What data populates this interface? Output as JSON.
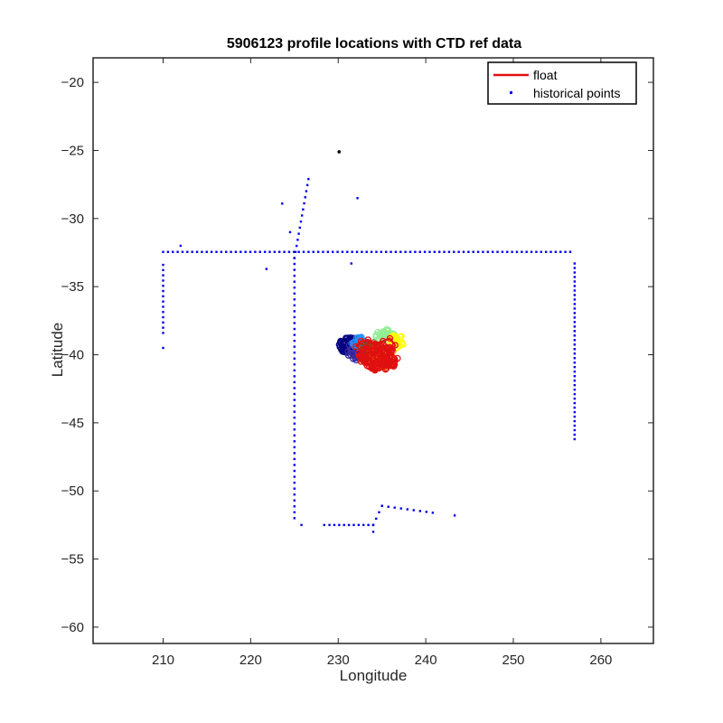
{
  "chart_data": {
    "type": "scatter",
    "title": "5906123 profile locations with CTD ref data",
    "xlabel": "Longitude",
    "ylabel": "Latitude",
    "xlim": [
      202,
      266
    ],
    "ylim": [
      -61.2,
      -18.2
    ],
    "xticks": [
      210,
      220,
      230,
      240,
      250,
      260
    ],
    "yticks": [
      -20,
      -25,
      -30,
      -35,
      -40,
      -45,
      -50,
      -55,
      -60
    ],
    "grid": false,
    "legend_position": "top-right",
    "colors": {
      "float": "#e01010",
      "historical": "#0000ee",
      "axis": "#262626"
    },
    "series": [
      {
        "name": "float",
        "marker": "line",
        "color": "#e01010",
        "x": [
          232.0,
          232.6,
          233.4,
          234.2,
          235.1,
          235.9,
          236.5,
          236.0,
          235.2,
          234.4,
          233.6,
          232.9,
          232.3,
          232.6,
          233.3,
          234.1,
          234.9,
          235.6,
          236.2,
          235.7,
          234.9,
          234.0,
          233.2,
          232.7,
          233.1,
          233.9,
          234.7,
          235.5,
          236.1,
          235.4,
          234.6,
          233.8,
          233.0,
          232.4,
          232.8,
          233.6
        ],
        "y": [
          -39.4,
          -39.0,
          -38.9,
          -39.2,
          -39.0,
          -38.8,
          -39.3,
          -39.8,
          -40.1,
          -39.7,
          -40.0,
          -40.3,
          -39.9,
          -40.5,
          -40.8,
          -40.4,
          -40.9,
          -40.6,
          -40.2,
          -39.6,
          -39.4,
          -39.8,
          -39.5,
          -40.0,
          -40.6,
          -41.0,
          -40.7,
          -41.0,
          -40.5,
          -40.2,
          -40.6,
          -40.9,
          -40.5,
          -40.1,
          -39.6,
          -39.3
        ]
      },
      {
        "name": "historical points",
        "marker": "dot",
        "color": "#0000ee",
        "segments": [
          {
            "x0": 210.0,
            "y0": -32.45,
            "x1": 256.5,
            "y1": -32.45,
            "n": 85
          },
          {
            "x0": 210.0,
            "y0": -33.4,
            "x1": 210.0,
            "y1": -38.4,
            "n": 14
          },
          {
            "x0": 257.0,
            "y0": -33.3,
            "x1": 257.0,
            "y1": -46.2,
            "n": 40
          },
          {
            "x0": 225.0,
            "y0": -32.9,
            "x1": 225.0,
            "y1": -52.0,
            "n": 45
          },
          {
            "x0": 225.0,
            "y0": -32.9,
            "x1": 226.6,
            "y1": -27.1,
            "n": 14
          },
          {
            "x0": 229.0,
            "y0": -52.5,
            "x1": 234.0,
            "y1": -52.5,
            "n": 10
          },
          {
            "x0": 234.0,
            "y0": -52.5,
            "x1": 235.0,
            "y1": -51.1,
            "n": 4
          },
          {
            "x0": 235.0,
            "y0": -51.1,
            "x1": 240.8,
            "y1": -51.6,
            "n": 9
          }
        ],
        "points": [
          {
            "x": 212.0,
            "y": -32.0
          },
          {
            "x": 210.0,
            "y": -39.5
          },
          {
            "x": 223.6,
            "y": -28.9
          },
          {
            "x": 224.5,
            "y": -31.0
          },
          {
            "x": 221.8,
            "y": -33.7
          },
          {
            "x": 232.2,
            "y": -28.5
          },
          {
            "x": 231.5,
            "y": -33.3
          },
          {
            "x": 225.8,
            "y": -52.5
          },
          {
            "x": 228.4,
            "y": -52.5
          },
          {
            "x": 234.0,
            "y": -53.0
          },
          {
            "x": 243.3,
            "y": -51.8
          }
        ]
      }
    ],
    "unlabeled_points": [
      {
        "x": 230.1,
        "y": -25.1,
        "color": "#000000"
      }
    ],
    "colored_clusters": [
      {
        "color": "#000080",
        "cx": 231.3,
        "cy": -39.3,
        "rx": 1.2,
        "ry": 0.6,
        "n": 70
      },
      {
        "color": "#3a2aa0",
        "cx": 232.3,
        "cy": -39.7,
        "rx": 1.3,
        "ry": 0.7,
        "n": 50
      },
      {
        "color": "#1e90ff",
        "cx": 232.5,
        "cy": -39.1,
        "rx": 0.9,
        "ry": 0.4,
        "n": 25
      },
      {
        "color": "#8b4513",
        "cx": 233.3,
        "cy": -39.4,
        "rx": 1.0,
        "ry": 0.5,
        "n": 25
      },
      {
        "color": "#90ee90",
        "cx": 235.4,
        "cy": -38.6,
        "rx": 1.1,
        "ry": 0.5,
        "n": 30
      },
      {
        "color": "#ffff00",
        "cx": 236.7,
        "cy": -39.0,
        "rx": 0.8,
        "ry": 0.5,
        "n": 25
      },
      {
        "color": "#ff9900",
        "cx": 235.0,
        "cy": -40.1,
        "rx": 1.6,
        "ry": 0.9,
        "n": 40
      },
      {
        "color": "#e01010",
        "cx": 234.8,
        "cy": -40.2,
        "rx": 2.0,
        "ry": 1.0,
        "n": 90
      }
    ]
  }
}
